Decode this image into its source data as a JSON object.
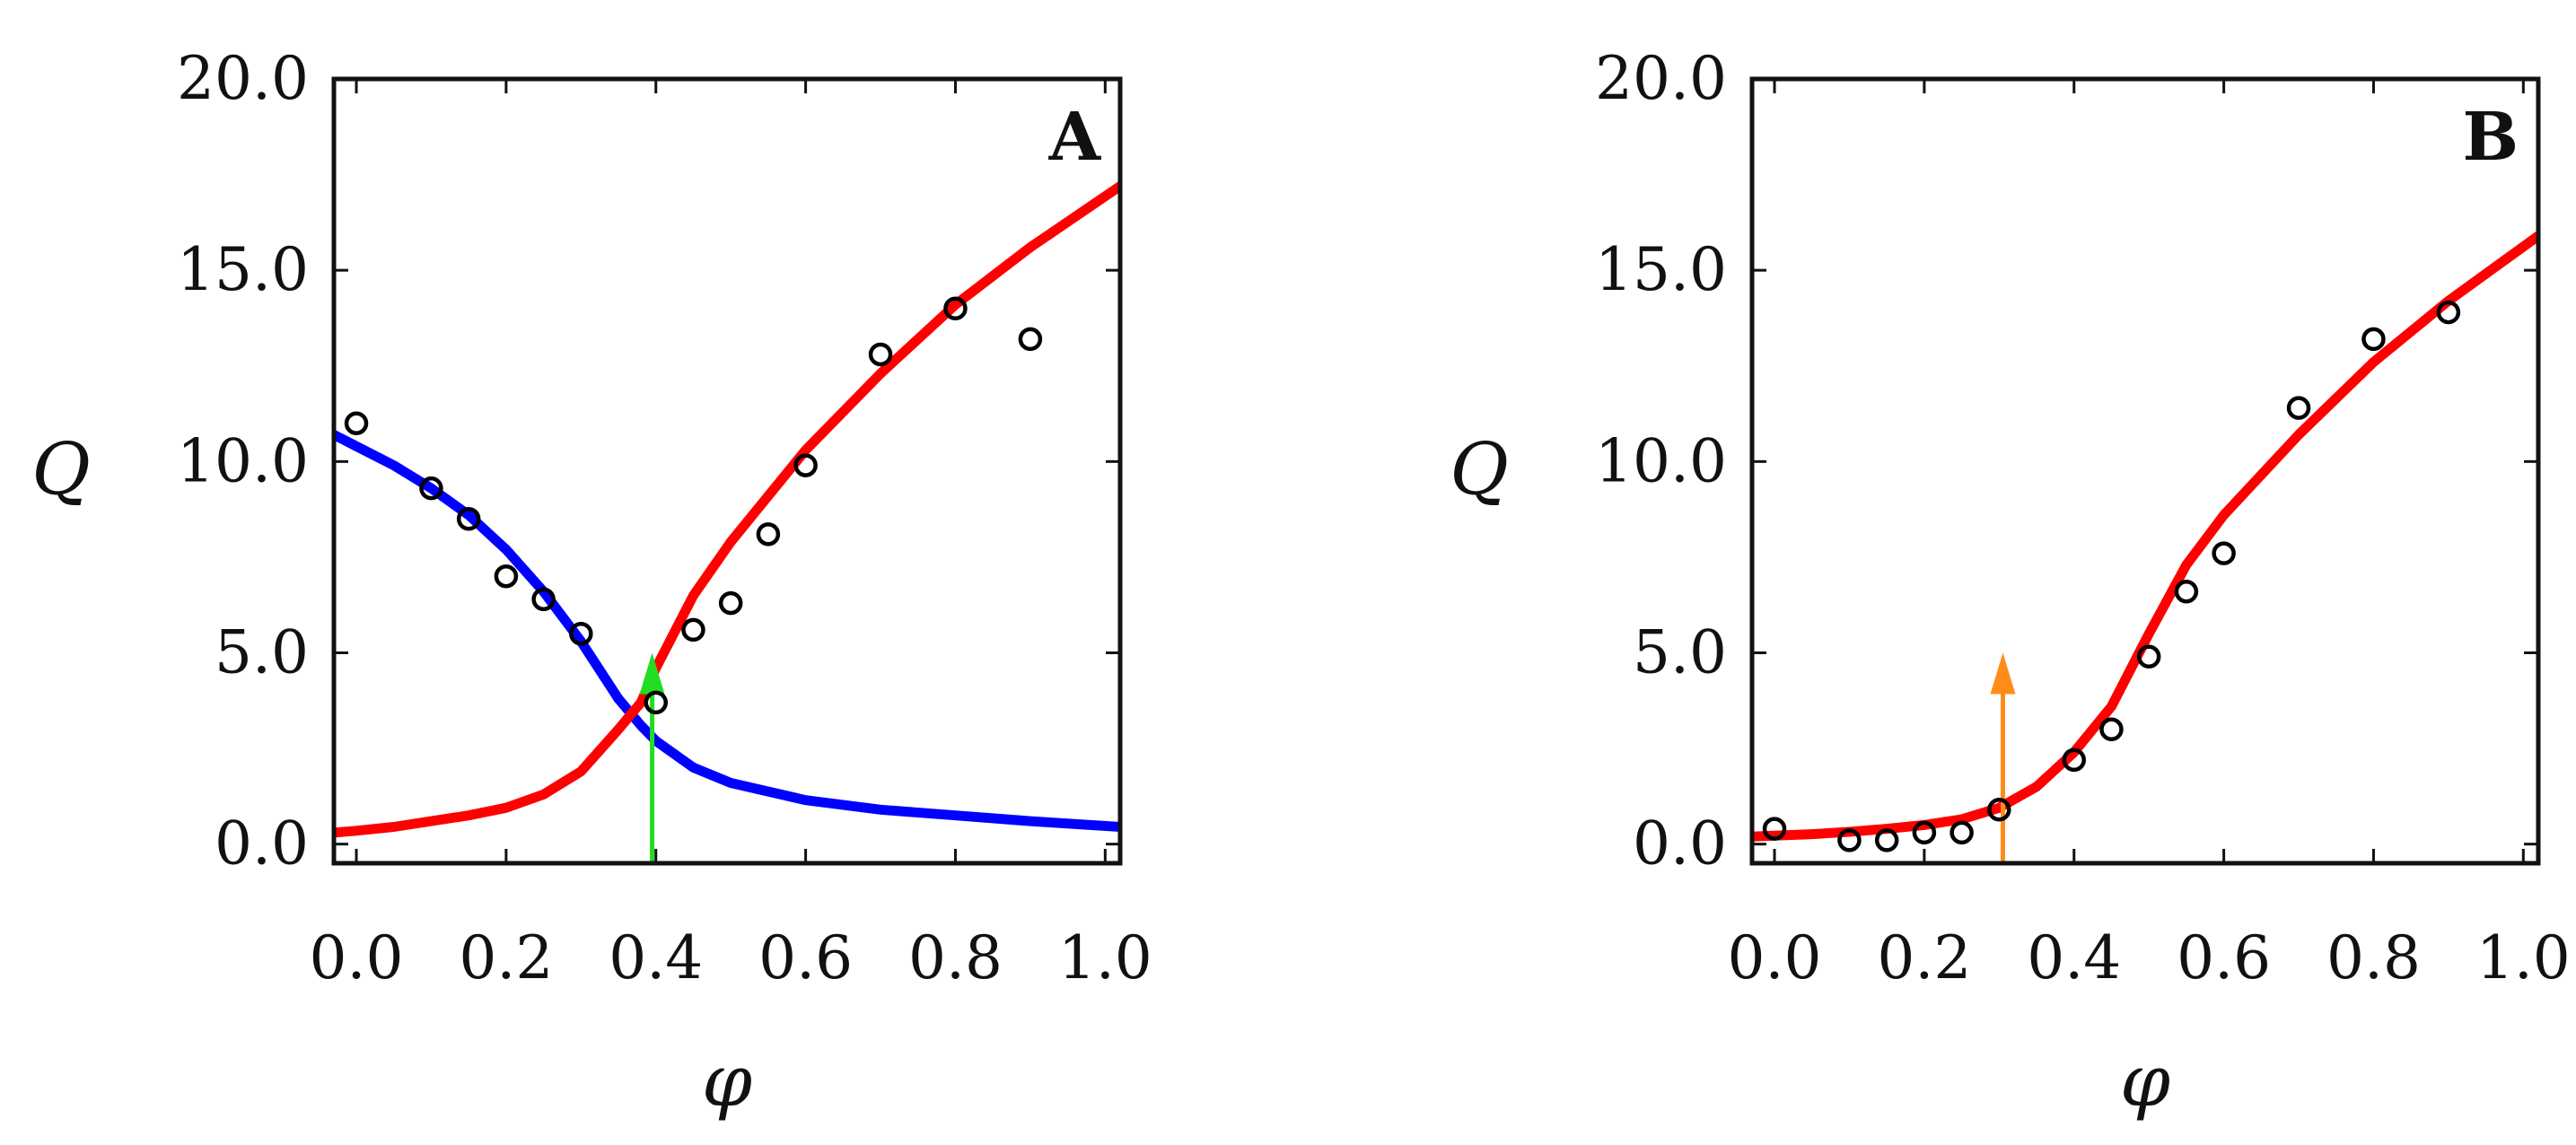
{
  "chart_data": [
    {
      "type": "scatter",
      "panel_label": "A",
      "xlabel": "φ",
      "ylabel": "Q",
      "xlim": [
        -0.03,
        1.02
      ],
      "ylim": [
        -0.5,
        20.0
      ],
      "xticks": [
        0.0,
        0.2,
        0.4,
        0.6,
        0.8,
        1.0
      ],
      "xtick_labels": [
        "0.0",
        "0.2",
        "0.4",
        "0.6",
        "0.8",
        "1.0"
      ],
      "yticks": [
        0.0,
        5.0,
        10.0,
        15.0,
        20.0
      ],
      "ytick_labels": [
        "0.0",
        "5.0",
        "10.0",
        "15.0",
        "20.0"
      ],
      "grid": false,
      "series": [
        {
          "kind": "points",
          "color": "#000000",
          "x": [
            0.0,
            0.1,
            0.15,
            0.2,
            0.25,
            0.3,
            0.4,
            0.45,
            0.5,
            0.55,
            0.6,
            0.7,
            0.8,
            0.9
          ],
          "y": [
            11.0,
            9.3,
            8.5,
            7.0,
            6.4,
            5.5,
            3.7,
            5.6,
            6.3,
            8.1,
            9.9,
            12.8,
            14.0,
            13.2
          ]
        },
        {
          "kind": "line",
          "color": "#0000ff",
          "x": [
            -0.03,
            0.0,
            0.05,
            0.1,
            0.15,
            0.2,
            0.25,
            0.3,
            0.35,
            0.38,
            0.4,
            0.45,
            0.5,
            0.6,
            0.7,
            0.8,
            0.9,
            1.02
          ],
          "y": [
            10.7,
            10.4,
            9.9,
            9.3,
            8.6,
            7.7,
            6.6,
            5.3,
            3.8,
            3.1,
            2.7,
            2.0,
            1.6,
            1.15,
            0.9,
            0.75,
            0.6,
            0.45
          ]
        },
        {
          "kind": "line",
          "color": "#ff0000",
          "x": [
            -0.03,
            0.0,
            0.05,
            0.1,
            0.15,
            0.2,
            0.25,
            0.3,
            0.35,
            0.38,
            0.4,
            0.45,
            0.5,
            0.55,
            0.6,
            0.7,
            0.8,
            0.9,
            1.02
          ],
          "y": [
            0.3,
            0.35,
            0.45,
            0.6,
            0.75,
            0.95,
            1.3,
            1.9,
            3.0,
            3.7,
            4.6,
            6.5,
            7.9,
            9.1,
            10.3,
            12.3,
            14.1,
            15.6,
            17.2
          ]
        },
        {
          "kind": "arrow",
          "color": "#22dd22",
          "x": 0.395,
          "y_from": -0.5,
          "y_to": 5.0
        }
      ]
    },
    {
      "type": "scatter",
      "panel_label": "B",
      "xlabel": "φ",
      "ylabel": "Q",
      "xlim": [
        -0.03,
        1.02
      ],
      "ylim": [
        -0.5,
        20.0
      ],
      "xticks": [
        0.0,
        0.2,
        0.4,
        0.6,
        0.8,
        1.0
      ],
      "xtick_labels": [
        "0.0",
        "0.2",
        "0.4",
        "0.6",
        "0.8",
        "1.0"
      ],
      "yticks": [
        0.0,
        5.0,
        10.0,
        15.0,
        20.0
      ],
      "ytick_labels": [
        "0.0",
        "5.0",
        "10.0",
        "15.0",
        "20.0"
      ],
      "grid": false,
      "series": [
        {
          "kind": "points",
          "color": "#000000",
          "x": [
            0.0,
            0.1,
            0.15,
            0.2,
            0.25,
            0.3,
            0.4,
            0.45,
            0.5,
            0.55,
            0.6,
            0.7,
            0.8,
            0.9
          ],
          "y": [
            0.4,
            0.1,
            0.1,
            0.3,
            0.3,
            0.9,
            2.2,
            3.0,
            4.9,
            6.6,
            7.6,
            11.4,
            13.2,
            13.9
          ]
        },
        {
          "kind": "line",
          "color": "#ff0000",
          "x": [
            -0.03,
            0.0,
            0.05,
            0.1,
            0.15,
            0.2,
            0.25,
            0.3,
            0.35,
            0.4,
            0.45,
            0.5,
            0.55,
            0.6,
            0.7,
            0.8,
            0.9,
            1.02
          ],
          "y": [
            0.2,
            0.22,
            0.26,
            0.32,
            0.4,
            0.5,
            0.65,
            0.95,
            1.5,
            2.4,
            3.6,
            5.5,
            7.3,
            8.6,
            10.7,
            12.6,
            14.2,
            15.9
          ]
        },
        {
          "kind": "arrow",
          "color": "#ff8c1a",
          "x": 0.305,
          "y_from": -0.5,
          "y_to": 5.0
        }
      ]
    }
  ]
}
